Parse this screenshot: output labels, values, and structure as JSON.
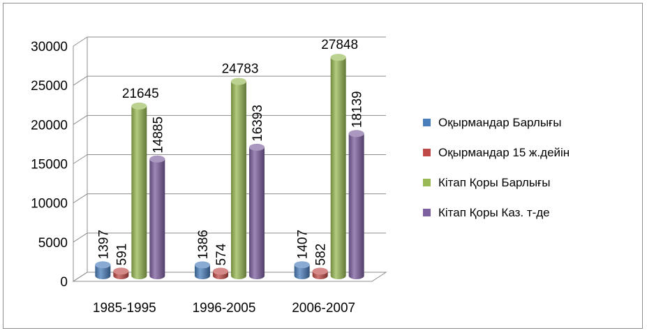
{
  "chart_data": {
    "type": "bar",
    "title": "",
    "xlabel": "",
    "ylabel": "",
    "ylim": [
      0,
      30000
    ],
    "yticks": [
      0,
      5000,
      10000,
      15000,
      20000,
      25000,
      30000
    ],
    "grid": true,
    "legend_position": "right",
    "categories": [
      "1985-1995",
      "1996-2005",
      "2006-2007"
    ],
    "series": [
      {
        "name": "Оқырмандар Барлығы",
        "values": [
          1397,
          1386,
          1407
        ],
        "color": "#4a7ebb"
      },
      {
        "name": "Оқырмандар 15 ж.дейін",
        "values": [
          591,
          574,
          582
        ],
        "color": "#be4b48"
      },
      {
        "name": "Кітап Қоры Барлығы",
        "values": [
          21645,
          24783,
          27848
        ],
        "color": "#98b954"
      },
      {
        "name": "Кітап Қоры Каз. т-де",
        "values": [
          14885,
          16393,
          18139
        ],
        "color": "#7d60a0"
      }
    ]
  }
}
